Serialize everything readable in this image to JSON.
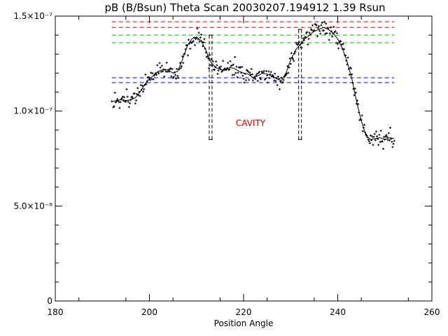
{
  "chart_data": {
    "type": "scatter",
    "title": "pB (B/Bsun) Theta Scan 20030207.194912 1.39 Rsun",
    "xlabel": "Position Angle",
    "ylabel": "",
    "xlim": [
      180,
      260
    ],
    "ylim": [
      0,
      1.5e-07
    ],
    "x_ticks": [
      180,
      200,
      220,
      240,
      260
    ],
    "x_tick_labels": [
      "180",
      "200",
      "220",
      "240",
      "260"
    ],
    "y_ticks": [
      0,
      5e-08,
      1e-07,
      1.5e-07
    ],
    "y_tick_labels": [
      "0",
      "5.0×10⁻⁸",
      "1.0×10⁻⁷",
      "1.5×10⁻⁷"
    ],
    "annotation": "CAVITY",
    "reference_lines": [
      {
        "y": 1.47e-07,
        "color": "#d00000",
        "xrange": [
          192,
          252
        ]
      },
      {
        "y": 1.44e-07,
        "color": "#d00000",
        "xrange": [
          192,
          252
        ]
      },
      {
        "y": 1.4e-07,
        "color": "#00bb00",
        "xrange": [
          192,
          252
        ]
      },
      {
        "y": 1.36e-07,
        "color": "#00bb00",
        "xrange": [
          192,
          252
        ]
      },
      {
        "y": 1.175e-07,
        "color": "#0000cc",
        "xrange": [
          192,
          252
        ]
      },
      {
        "y": 1.15e-07,
        "color": "#0000cc",
        "xrange": [
          192,
          252
        ]
      }
    ],
    "cavity_boundaries": [
      {
        "x": 213,
        "y": [
          8.5e-08,
          1.4e-07
        ]
      },
      {
        "x": 232,
        "y": [
          8.5e-08,
          1.43e-07
        ]
      }
    ],
    "smooth_curve": {
      "x": [
        192,
        193,
        194,
        195,
        196,
        197,
        198,
        199,
        200,
        201,
        202,
        203,
        204,
        205,
        206,
        207,
        208,
        209,
        210,
        211,
        212,
        213,
        214,
        215,
        216,
        217,
        218,
        219,
        220,
        221,
        222,
        223,
        224,
        225,
        226,
        227,
        228,
        229,
        230,
        231,
        232,
        233,
        234,
        235,
        236,
        237,
        238,
        239,
        240,
        241,
        242,
        243,
        244,
        245,
        246,
        247,
        248,
        249,
        250,
        251,
        252
      ],
      "y": [
        1.05e-07,
        1.055e-07,
        1.06e-07,
        1.055e-07,
        1.06e-07,
        1.07e-07,
        1.1e-07,
        1.14e-07,
        1.17e-07,
        1.19e-07,
        1.21e-07,
        1.22e-07,
        1.215e-07,
        1.2e-07,
        1.21e-07,
        1.27e-07,
        1.34e-07,
        1.38e-07,
        1.39e-07,
        1.37e-07,
        1.32e-07,
        1.26e-07,
        1.23e-07,
        1.22e-07,
        1.215e-07,
        1.23e-07,
        1.225e-07,
        1.21e-07,
        1.2e-07,
        1.195e-07,
        1.175e-07,
        1.185e-07,
        1.2e-07,
        1.195e-07,
        1.185e-07,
        1.17e-07,
        1.16e-07,
        1.2e-07,
        1.27e-07,
        1.32e-07,
        1.35e-07,
        1.38e-07,
        1.4e-07,
        1.42e-07,
        1.43e-07,
        1.44e-07,
        1.43e-07,
        1.41e-07,
        1.38e-07,
        1.33e-07,
        1.26e-07,
        1.17e-07,
        1.05e-07,
        9.5e-08,
        8.7e-08,
        8.5e-08,
        8.55e-08,
        8.6e-08,
        8.5e-08,
        8.6e-08,
        8.55e-08
      ]
    },
    "scatter_series": [
      {
        "name": "",
        "offset": 2.5e-09
      },
      {
        "name": "",
        "offset": -2.5e-09
      },
      {
        "name": "",
        "offset": 5e-09
      }
    ],
    "grid": false,
    "legend": "none"
  }
}
